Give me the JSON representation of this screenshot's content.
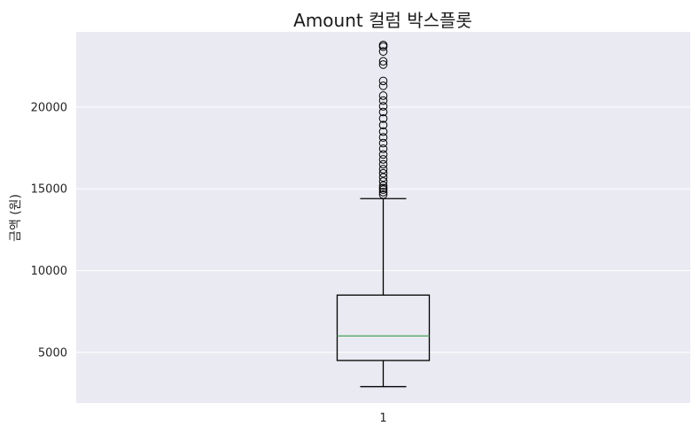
{
  "chart_data": {
    "type": "boxplot",
    "title": "Amount 컬럼 박스플롯",
    "xlabel": "",
    "ylabel": "금액 (원)",
    "categories": [
      "1"
    ],
    "ylim": [
      1900,
      24600
    ],
    "yticks": [
      5000,
      10000,
      15000,
      20000
    ],
    "grid": true,
    "box": {
      "whisker_low": 2900,
      "q1": 4500,
      "median": 6000,
      "q3": 8500,
      "whisker_high": 14400
    },
    "outliers": [
      14650,
      14800,
      14950,
      15050,
      15200,
      15450,
      15700,
      15950,
      16200,
      16500,
      16800,
      17100,
      17450,
      17800,
      18150,
      18500,
      18900,
      19300,
      19700,
      20050,
      20400,
      20700,
      21300,
      21600,
      22600,
      22800,
      23400,
      23700,
      23800
    ],
    "colors": {
      "background": "#eaeaf2",
      "grid": "#ffffff",
      "box": "#000000",
      "median": "#55a868"
    }
  }
}
